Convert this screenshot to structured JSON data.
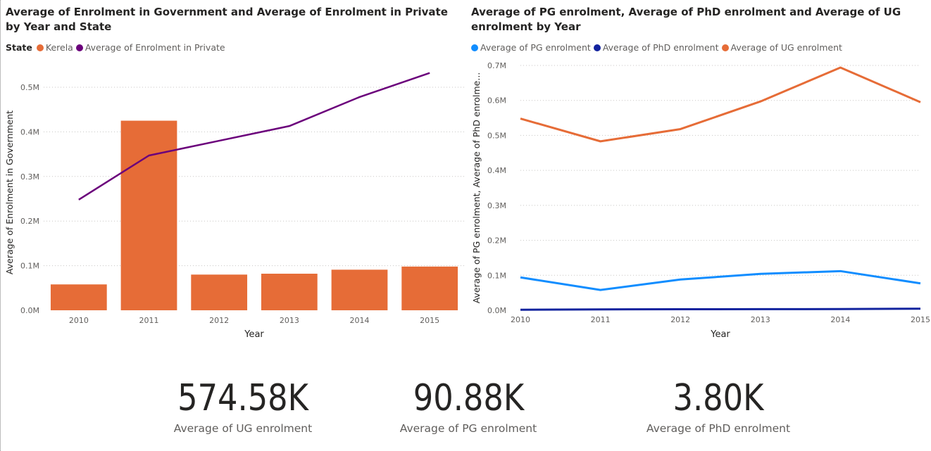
{
  "colors": {
    "kerala": "#e66c37",
    "private": "#6b007b",
    "pg": "#118dff",
    "phd": "#12239e",
    "ug": "#e66c37",
    "gridline": "#c8c6c4",
    "axis_text": "#605e5c"
  },
  "chart_data": [
    {
      "type": "bar",
      "title": "Average of Enrolment in Government and Average of Enrolment in Private by Year and State",
      "legend_title": "State",
      "legend": [
        "Kerela",
        "Average of Enrolment in Private"
      ],
      "xlabel": "Year",
      "ylabel": "Average of Enrolment in Government",
      "categories": [
        "2010",
        "2011",
        "2012",
        "2013",
        "2014",
        "2015"
      ],
      "yticks": [
        "0.0M",
        "0.1M",
        "0.2M",
        "0.3M",
        "0.4M",
        "0.5M"
      ],
      "ylim": [
        0,
        550000
      ],
      "grid": true,
      "series": [
        {
          "name": "Kerela",
          "type": "bar",
          "values": [
            58000,
            425000,
            80000,
            82000,
            91000,
            98000
          ]
        },
        {
          "name": "Average of Enrolment in Private",
          "type": "line",
          "values": [
            248000,
            347000,
            380000,
            413000,
            478000,
            532000
          ]
        }
      ]
    },
    {
      "type": "line",
      "title": "Average of PG enrolment, Average of PhD enrolment and Average of UG enrolment by Year",
      "legend": [
        "Average of PG enrolment",
        "Average of PhD enrolment",
        "Average of UG enrolment"
      ],
      "xlabel": "Year",
      "ylabel": "Average of PG enrolment, Average of PhD enrolme...",
      "categories": [
        "2010",
        "2011",
        "2012",
        "2013",
        "2014",
        "2015"
      ],
      "yticks": [
        "0.0M",
        "0.1M",
        "0.2M",
        "0.3M",
        "0.4M",
        "0.5M",
        "0.6M",
        "0.7M"
      ],
      "ylim": [
        0,
        700000
      ],
      "grid": true,
      "series": [
        {
          "name": "Average of PG enrolment",
          "values": [
            94000,
            58000,
            88000,
            104000,
            112000,
            77000
          ]
        },
        {
          "name": "Average of PhD enrolment",
          "values": [
            1500,
            2500,
            3000,
            3200,
            3500,
            4500
          ]
        },
        {
          "name": "Average of UG enrolment",
          "values": [
            548000,
            483000,
            518000,
            597000,
            694000,
            595000
          ]
        }
      ]
    }
  ],
  "kpis": [
    {
      "value": "574.58K",
      "label": "Average of UG enrolment"
    },
    {
      "value": "90.88K",
      "label": "Average of PG enrolment"
    },
    {
      "value": "3.80K",
      "label": "Average of PhD enrolment"
    }
  ]
}
